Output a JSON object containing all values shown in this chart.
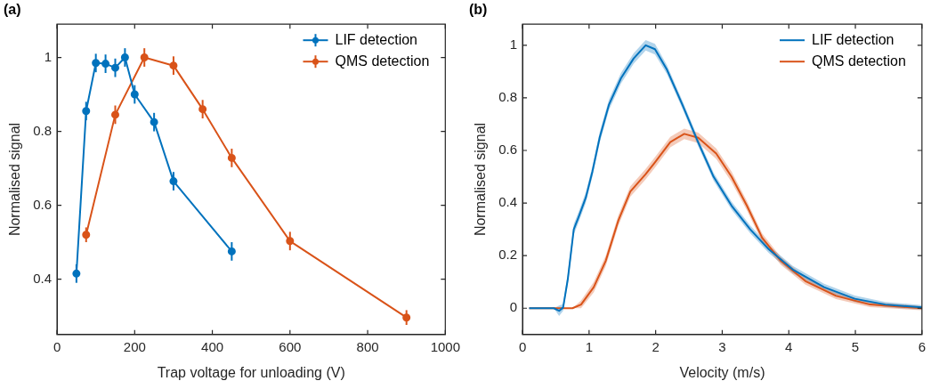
{
  "chart_data": [
    {
      "type": "line",
      "title": "(a)",
      "xlabel": "Trap voltage for unloading (V)",
      "ylabel": "Normalised signal",
      "xlim": [
        0,
        1000
      ],
      "xticks": [
        0,
        200,
        400,
        600,
        800,
        1000
      ],
      "ylim": [
        0.25,
        1.09
      ],
      "yticks": [
        0.4,
        0.6,
        0.8,
        1
      ],
      "legend": "top right",
      "marker": "circle",
      "series": [
        {
          "name": "LIF detection",
          "color": "#0072bd",
          "x": [
            50,
            75,
            100,
            125,
            150,
            175,
            200,
            250,
            300,
            450
          ],
          "values": [
            0.415,
            0.855,
            0.985,
            0.983,
            0.972,
            1.0,
            0.9,
            0.825,
            0.665,
            0.475
          ],
          "errors": [
            0.025,
            0.025,
            0.025,
            0.025,
            0.025,
            0.025,
            0.025,
            0.025,
            0.025,
            0.025
          ]
        },
        {
          "name": "QMS detection",
          "color": "#d95319",
          "x": [
            75,
            150,
            225,
            300,
            375,
            450,
            600,
            900
          ],
          "values": [
            0.52,
            0.845,
            1.0,
            0.978,
            0.86,
            0.728,
            0.503,
            0.296
          ],
          "errors": [
            0.02,
            0.025,
            0.025,
            0.025,
            0.025,
            0.025,
            0.025,
            0.02
          ]
        }
      ]
    },
    {
      "type": "line",
      "title": "(b)",
      "xlabel": "Velocity (m/s)",
      "ylabel": "Normalised signal",
      "xlim": [
        0,
        6
      ],
      "xticks": [
        0,
        1,
        2,
        3,
        4,
        5,
        6
      ],
      "ylim": [
        -0.1,
        1.08
      ],
      "yticks": [
        0,
        0.2,
        0.4,
        0.6,
        0.8,
        1
      ],
      "legend": "top right",
      "marker": "none",
      "series": [
        {
          "name": "LIF detection",
          "color": "#0072bd",
          "x": [
            0.1,
            0.47,
            0.55,
            0.61,
            0.68,
            0.77,
            0.84,
            0.95,
            1.05,
            1.16,
            1.3,
            1.48,
            1.67,
            1.85,
            1.99,
            2.17,
            2.4,
            2.64,
            2.87,
            3.14,
            3.42,
            3.7,
            4.06,
            4.53,
            4.99,
            5.45,
            6.0
          ],
          "values": [
            0,
            0,
            -0.01,
            0.003,
            0.11,
            0.3,
            0.345,
            0.42,
            0.52,
            0.65,
            0.775,
            0.875,
            0.95,
            1.0,
            0.985,
            0.907,
            0.775,
            0.63,
            0.5,
            0.39,
            0.3,
            0.224,
            0.147,
            0.08,
            0.036,
            0.014,
            0.003
          ],
          "lower": [
            0,
            0,
            -0.03,
            -0.01,
            0.09,
            0.28,
            0.325,
            0.4,
            0.5,
            0.63,
            0.755,
            0.855,
            0.93,
            0.98,
            0.965,
            0.89,
            0.76,
            0.615,
            0.485,
            0.375,
            0.285,
            0.21,
            0.133,
            0.067,
            0.024,
            0.004,
            -0.006
          ],
          "upper": [
            0,
            0,
            0.01,
            0.016,
            0.13,
            0.32,
            0.365,
            0.44,
            0.54,
            0.67,
            0.795,
            0.895,
            0.97,
            1.02,
            1.005,
            0.924,
            0.79,
            0.645,
            0.515,
            0.405,
            0.315,
            0.238,
            0.161,
            0.093,
            0.048,
            0.024,
            0.012
          ]
        },
        {
          "name": "QMS detection",
          "color": "#d95319",
          "x": [
            0.1,
            0.75,
            0.88,
            1.07,
            1.25,
            1.44,
            1.62,
            1.85,
            1.99,
            2.22,
            2.43,
            2.64,
            2.91,
            3.14,
            3.37,
            3.6,
            3.88,
            4.25,
            4.71,
            5.22,
            6.0
          ],
          "values": [
            0,
            0,
            0.014,
            0.08,
            0.18,
            0.334,
            0.444,
            0.51,
            0.555,
            0.632,
            0.663,
            0.648,
            0.588,
            0.5,
            0.39,
            0.268,
            0.18,
            0.103,
            0.047,
            0.014,
            0
          ],
          "lower": [
            0,
            0,
            0.0,
            0.06,
            0.16,
            0.314,
            0.424,
            0.49,
            0.535,
            0.612,
            0.643,
            0.628,
            0.568,
            0.48,
            0.372,
            0.252,
            0.165,
            0.09,
            0.035,
            0.004,
            -0.008
          ],
          "upper": [
            0,
            0,
            0.03,
            0.1,
            0.2,
            0.354,
            0.464,
            0.53,
            0.575,
            0.652,
            0.683,
            0.668,
            0.608,
            0.52,
            0.408,
            0.284,
            0.195,
            0.116,
            0.059,
            0.024,
            0.008
          ]
        }
      ]
    }
  ]
}
